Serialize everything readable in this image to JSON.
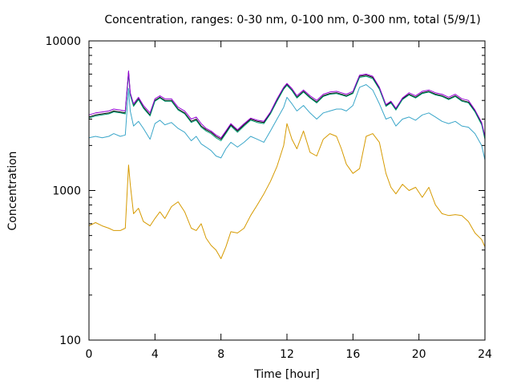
{
  "chart_data": {
    "type": "line",
    "title": "Concentration, ranges: 0-30 nm, 0-100 nm, 0-300 nm, total (5/9/1)",
    "xlabel": "Time [hour]",
    "ylabel": "Concentration",
    "xlim": [
      0,
      24
    ],
    "ylim": [
      100,
      10000
    ],
    "yscale": "log",
    "legend": "none",
    "grid": false,
    "xticks": [
      {
        "value": 0,
        "label": "0"
      },
      {
        "value": 4,
        "label": "4"
      },
      {
        "value": 8,
        "label": "8"
      },
      {
        "value": 12,
        "label": "12"
      },
      {
        "value": 16,
        "label": "16"
      },
      {
        "value": 20,
        "label": "20"
      },
      {
        "value": 24,
        "label": "24"
      }
    ],
    "yticks": [
      {
        "value": 100,
        "label": "100"
      },
      {
        "value": 1000,
        "label": "1000"
      },
      {
        "value": 10000,
        "label": "10000"
      }
    ],
    "series": [
      {
        "color": "#d69a00",
        "x": [
          0,
          0.4,
          0.8,
          1.2,
          1.5,
          1.9,
          2.2,
          2.4,
          2.5,
          2.7,
          3.0,
          3.3,
          3.7,
          4.0,
          4.3,
          4.6,
          5.0,
          5.4,
          5.8,
          6.2,
          6.5,
          6.8,
          7.1,
          7.4,
          7.7,
          8.0,
          8.3,
          8.6,
          9.0,
          9.4,
          9.8,
          10.2,
          10.6,
          11.0,
          11.4,
          11.8,
          12.0,
          12.3,
          12.6,
          13.0,
          13.4,
          13.8,
          14.2,
          14.6,
          15.0,
          15.3,
          15.6,
          16.0,
          16.4,
          16.8,
          17.2,
          17.6,
          18.0,
          18.3,
          18.6,
          19.0,
          19.4,
          19.8,
          20.2,
          20.6,
          21.0,
          21.4,
          21.8,
          22.2,
          22.6,
          23.0,
          23.4,
          23.8,
          24.0
        ],
        "y": [
          580,
          610,
          580,
          560,
          540,
          540,
          560,
          1480,
          1100,
          700,
          760,
          620,
          580,
          650,
          720,
          650,
          780,
          840,
          720,
          560,
          540,
          600,
          480,
          430,
          400,
          350,
          420,
          530,
          520,
          560,
          680,
          800,
          950,
          1150,
          1450,
          2000,
          2800,
          2200,
          1900,
          2500,
          1800,
          1700,
          2200,
          2400,
          2300,
          1900,
          1500,
          1300,
          1400,
          2300,
          2400,
          2100,
          1300,
          1050,
          950,
          1100,
          1000,
          1050,
          900,
          1050,
          800,
          700,
          680,
          690,
          680,
          620,
          520,
          470,
          420
        ]
      },
      {
        "color": "#3aa6c9",
        "x": [
          0,
          0.4,
          0.8,
          1.2,
          1.5,
          1.9,
          2.2,
          2.4,
          2.5,
          2.7,
          3.0,
          3.3,
          3.7,
          4.0,
          4.3,
          4.6,
          5.0,
          5.4,
          5.8,
          6.2,
          6.5,
          6.8,
          7.1,
          7.4,
          7.7,
          8.0,
          8.3,
          8.6,
          9.0,
          9.4,
          9.8,
          10.2,
          10.6,
          11.0,
          11.4,
          11.8,
          12.0,
          12.3,
          12.6,
          13.0,
          13.4,
          13.8,
          14.2,
          14.6,
          15.0,
          15.3,
          15.6,
          16.0,
          16.4,
          16.8,
          17.2,
          17.6,
          18.0,
          18.3,
          18.6,
          19.0,
          19.4,
          19.8,
          20.2,
          20.6,
          21.0,
          21.4,
          21.8,
          22.2,
          22.6,
          23.0,
          23.4,
          23.8,
          24.0
        ],
        "y": [
          2250,
          2300,
          2250,
          2300,
          2400,
          2300,
          2350,
          4800,
          3400,
          2700,
          2900,
          2600,
          2200,
          2800,
          2950,
          2750,
          2850,
          2600,
          2450,
          2150,
          2300,
          2050,
          1950,
          1850,
          1700,
          1650,
          1900,
          2100,
          1950,
          2100,
          2300,
          2200,
          2100,
          2500,
          3000,
          3600,
          4200,
          3800,
          3400,
          3700,
          3300,
          3000,
          3300,
          3400,
          3500,
          3500,
          3400,
          3700,
          4900,
          5100,
          4700,
          3800,
          3000,
          3100,
          2700,
          3000,
          3100,
          2950,
          3200,
          3300,
          3100,
          2900,
          2800,
          2900,
          2700,
          2650,
          2400,
          2000,
          1600
        ]
      },
      {
        "color": "#000000",
        "x": [
          0,
          0.4,
          0.8,
          1.2,
          1.5,
          1.9,
          2.2,
          2.4,
          2.5,
          2.7,
          3.0,
          3.3,
          3.7,
          4.0,
          4.3,
          4.6,
          5.0,
          5.4,
          5.8,
          6.2,
          6.5,
          6.8,
          7.1,
          7.4,
          7.7,
          8.0,
          8.3,
          8.6,
          9.0,
          9.4,
          9.8,
          10.2,
          10.6,
          11.0,
          11.4,
          11.8,
          12.0,
          12.3,
          12.6,
          13.0,
          13.4,
          13.8,
          14.2,
          14.6,
          15.0,
          15.3,
          15.6,
          16.0,
          16.4,
          16.8,
          17.2,
          17.6,
          18.0,
          18.3,
          18.6,
          19.0,
          19.4,
          19.8,
          20.2,
          20.6,
          21.0,
          21.4,
          21.8,
          22.2,
          22.6,
          23.0,
          23.4,
          23.8,
          24.0
        ],
        "y": [
          3100,
          3200,
          3250,
          3300,
          3400,
          3350,
          3300,
          6200,
          4400,
          3700,
          4100,
          3600,
          3200,
          4000,
          4200,
          4000,
          4000,
          3500,
          3300,
          2900,
          3000,
          2700,
          2550,
          2450,
          2300,
          2200,
          2450,
          2750,
          2500,
          2750,
          3000,
          2900,
          2850,
          3300,
          4000,
          4800,
          5100,
          4700,
          4200,
          4600,
          4200,
          3900,
          4300,
          4450,
          4500,
          4400,
          4300,
          4500,
          5800,
          5900,
          5700,
          4800,
          3700,
          3900,
          3500,
          4100,
          4400,
          4200,
          4500,
          4600,
          4400,
          4300,
          4100,
          4300,
          4000,
          3900,
          3400,
          2800,
          2250
        ]
      },
      {
        "color": "#009e73",
        "x": [
          0,
          0.4,
          0.8,
          1.2,
          1.5,
          1.9,
          2.2,
          2.4,
          2.5,
          2.7,
          3.0,
          3.3,
          3.7,
          4.0,
          4.3,
          4.6,
          5.0,
          5.4,
          5.8,
          6.2,
          6.5,
          6.8,
          7.1,
          7.4,
          7.7,
          8.0,
          8.3,
          8.6,
          9.0,
          9.4,
          9.8,
          10.2,
          10.6,
          11.0,
          11.4,
          11.8,
          12.0,
          12.3,
          12.6,
          13.0,
          13.4,
          13.8,
          14.2,
          14.6,
          15.0,
          15.3,
          15.6,
          16.0,
          16.4,
          16.8,
          17.2,
          17.6,
          18.0,
          18.3,
          18.6,
          19.0,
          19.4,
          19.8,
          20.2,
          20.6,
          21.0,
          21.4,
          21.8,
          22.2,
          22.6,
          23.0,
          23.4,
          23.8,
          24.0
        ],
        "y": [
          3050,
          3150,
          3200,
          3250,
          3350,
          3300,
          3250,
          6100,
          4350,
          3650,
          4050,
          3550,
          3150,
          3950,
          4150,
          3950,
          3950,
          3450,
          3250,
          2850,
          2950,
          2650,
          2500,
          2400,
          2250,
          2150,
          2400,
          2700,
          2450,
          2700,
          2950,
          2850,
          2800,
          3250,
          3950,
          4750,
          5050,
          4650,
          4150,
          4550,
          4150,
          3850,
          4250,
          4400,
          4450,
          4350,
          4250,
          4450,
          5700,
          5800,
          5600,
          4750,
          3650,
          3850,
          3450,
          4050,
          4350,
          4150,
          4450,
          4550,
          4350,
          4250,
          4050,
          4250,
          3950,
          3850,
          3350,
          2750,
          2200
        ]
      },
      {
        "color": "#9400d3",
        "x": [
          0,
          0.4,
          0.8,
          1.2,
          1.5,
          1.9,
          2.2,
          2.4,
          2.5,
          2.7,
          3.0,
          3.3,
          3.7,
          4.0,
          4.3,
          4.6,
          5.0,
          5.4,
          5.8,
          6.2,
          6.5,
          6.8,
          7.1,
          7.4,
          7.7,
          8.0,
          8.3,
          8.6,
          9.0,
          9.4,
          9.8,
          10.2,
          10.6,
          11.0,
          11.4,
          11.8,
          12.0,
          12.3,
          12.6,
          13.0,
          13.4,
          13.8,
          14.2,
          14.6,
          15.0,
          15.3,
          15.6,
          16.0,
          16.4,
          16.8,
          17.2,
          17.6,
          18.0,
          18.3,
          18.6,
          19.0,
          19.4,
          19.8,
          20.2,
          20.6,
          21.0,
          21.4,
          21.8,
          22.2,
          22.6,
          23.0,
          23.4,
          23.8,
          24.0
        ],
        "y": [
          3200,
          3300,
          3350,
          3400,
          3500,
          3450,
          3400,
          6300,
          4500,
          3800,
          4200,
          3700,
          3300,
          4100,
          4300,
          4100,
          4100,
          3600,
          3400,
          3000,
          3100,
          2800,
          2600,
          2500,
          2350,
          2250,
          2500,
          2800,
          2550,
          2800,
          3050,
          2950,
          2900,
          3350,
          4100,
          4900,
          5200,
          4800,
          4300,
          4700,
          4300,
          4000,
          4400,
          4550,
          4600,
          4500,
          4400,
          4600,
          5900,
          6000,
          5800,
          4900,
          3750,
          3950,
          3550,
          4150,
          4500,
          4300,
          4600,
          4700,
          4500,
          4400,
          4200,
          4400,
          4100,
          4000,
          3450,
          2850,
          2300
        ]
      }
    ]
  }
}
